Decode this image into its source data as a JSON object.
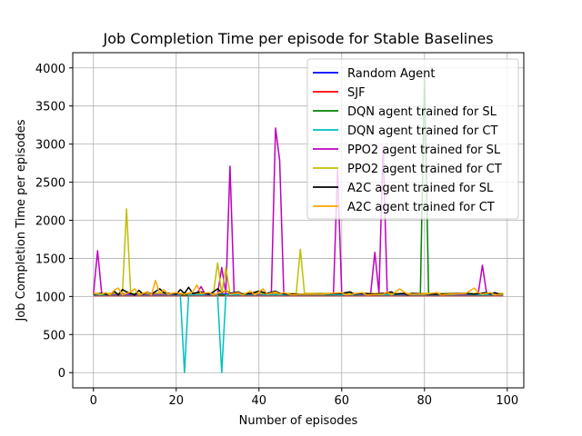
{
  "chart_data": {
    "type": "line",
    "title": "Job Completion Time per episode for Stable Baselines",
    "xlabel": "Number of episodes",
    "ylabel": "Job Completion Time per episodes",
    "xlim": [
      -5,
      104
    ],
    "ylim": [
      -200,
      4200
    ],
    "xticks": [
      0,
      20,
      40,
      60,
      80,
      100
    ],
    "yticks": [
      0,
      500,
      1000,
      1500,
      2000,
      2500,
      3000,
      3500,
      4000
    ],
    "grid": true,
    "legend_position": "top-right",
    "series": [
      {
        "name": "Random Agent",
        "color": "#0000ff",
        "points": [
          [
            0,
            1030
          ],
          [
            5,
            1040
          ],
          [
            10,
            1030
          ],
          [
            15,
            1040
          ],
          [
            20,
            1030
          ],
          [
            25,
            1040
          ],
          [
            30,
            1030
          ],
          [
            35,
            1030
          ],
          [
            40,
            1040
          ],
          [
            45,
            1030
          ],
          [
            50,
            1030
          ],
          [
            55,
            1040
          ],
          [
            60,
            1030
          ],
          [
            65,
            1030
          ],
          [
            70,
            1040
          ],
          [
            75,
            1030
          ],
          [
            80,
            1030
          ],
          [
            85,
            1040
          ],
          [
            90,
            1030
          ],
          [
            95,
            1030
          ],
          [
            99,
            1030
          ]
        ]
      },
      {
        "name": "SJF",
        "color": "#ff0000",
        "points": [
          [
            0,
            1010
          ],
          [
            10,
            1010
          ],
          [
            20,
            1010
          ],
          [
            30,
            1010
          ],
          [
            40,
            1010
          ],
          [
            50,
            1010
          ],
          [
            60,
            1010
          ],
          [
            70,
            1010
          ],
          [
            80,
            1010
          ],
          [
            90,
            1010
          ],
          [
            99,
            1010
          ]
        ]
      },
      {
        "name": "DQN agent trained for SL",
        "color": "#008000",
        "points": [
          [
            0,
            1020
          ],
          [
            10,
            1020
          ],
          [
            20,
            1020
          ],
          [
            30,
            1020
          ],
          [
            40,
            1020
          ],
          [
            50,
            1020
          ],
          [
            60,
            1020
          ],
          [
            70,
            1020
          ],
          [
            78,
            1020
          ],
          [
            79,
            1020
          ],
          [
            80,
            3900
          ],
          [
            81,
            1020
          ],
          [
            85,
            1020
          ],
          [
            90,
            1020
          ],
          [
            99,
            1020
          ]
        ]
      },
      {
        "name": "DQN agent trained for CT",
        "color": "#00bfbf",
        "points": [
          [
            0,
            1020
          ],
          [
            10,
            1020
          ],
          [
            20,
            1020
          ],
          [
            21,
            1020
          ],
          [
            22,
            0
          ],
          [
            23,
            1020
          ],
          [
            30,
            1020
          ],
          [
            31,
            0
          ],
          [
            32,
            1020
          ],
          [
            40,
            1020
          ],
          [
            50,
            1020
          ],
          [
            60,
            1020
          ],
          [
            70,
            1020
          ],
          [
            80,
            1020
          ],
          [
            90,
            1020
          ],
          [
            99,
            1020
          ]
        ]
      },
      {
        "name": "PPO2 agent trained for SL",
        "color": "#bf00bf",
        "points": [
          [
            0,
            1030
          ],
          [
            1,
            1600
          ],
          [
            2,
            1040
          ],
          [
            5,
            1030
          ],
          [
            10,
            1030
          ],
          [
            15,
            1030
          ],
          [
            20,
            1030
          ],
          [
            25,
            1040
          ],
          [
            26,
            1130
          ],
          [
            27,
            1030
          ],
          [
            30,
            1030
          ],
          [
            31,
            1380
          ],
          [
            32,
            1040
          ],
          [
            33,
            2710
          ],
          [
            34,
            1040
          ],
          [
            40,
            1030
          ],
          [
            43,
            1050
          ],
          [
            44,
            3210
          ],
          [
            45,
            2790
          ],
          [
            46,
            1040
          ],
          [
            50,
            1030
          ],
          [
            55,
            1030
          ],
          [
            58,
            1040
          ],
          [
            59,
            2660
          ],
          [
            60,
            1040
          ],
          [
            65,
            1030
          ],
          [
            67,
            1040
          ],
          [
            68,
            1580
          ],
          [
            69,
            1040
          ],
          [
            70,
            2950
          ],
          [
            71,
            1040
          ],
          [
            75,
            1030
          ],
          [
            80,
            1030
          ],
          [
            85,
            1030
          ],
          [
            90,
            1030
          ],
          [
            93,
            1040
          ],
          [
            94,
            1410
          ],
          [
            95,
            1040
          ],
          [
            99,
            1030
          ]
        ]
      },
      {
        "name": "PPO2 agent trained for CT",
        "color": "#bfbf00",
        "points": [
          [
            0,
            1040
          ],
          [
            5,
            1040
          ],
          [
            7,
            1040
          ],
          [
            8,
            2150
          ],
          [
            9,
            1040
          ],
          [
            15,
            1040
          ],
          [
            20,
            1040
          ],
          [
            25,
            1040
          ],
          [
            29,
            1040
          ],
          [
            30,
            1440
          ],
          [
            31,
            1040
          ],
          [
            32,
            1380
          ],
          [
            33,
            1040
          ],
          [
            40,
            1040
          ],
          [
            45,
            1040
          ],
          [
            49,
            1040
          ],
          [
            50,
            1620
          ],
          [
            51,
            1040
          ],
          [
            55,
            1040
          ],
          [
            60,
            1040
          ],
          [
            70,
            1040
          ],
          [
            80,
            1040
          ],
          [
            90,
            1040
          ],
          [
            99,
            1040
          ]
        ]
      },
      {
        "name": "A2C agent trained for SL",
        "color": "#000000",
        "points": [
          [
            0,
            1030
          ],
          [
            2,
            1040
          ],
          [
            4,
            1020
          ],
          [
            5,
            1070
          ],
          [
            6,
            1020
          ],
          [
            7,
            1090
          ],
          [
            8,
            1060
          ],
          [
            9,
            1040
          ],
          [
            10,
            1020
          ],
          [
            11,
            1080
          ],
          [
            12,
            1030
          ],
          [
            13,
            1060
          ],
          [
            14,
            1030
          ],
          [
            16,
            1100
          ],
          [
            17,
            1050
          ],
          [
            18,
            1040
          ],
          [
            20,
            1030
          ],
          [
            21,
            1090
          ],
          [
            22,
            1040
          ],
          [
            23,
            1120
          ],
          [
            24,
            1040
          ],
          [
            26,
            1060
          ],
          [
            27,
            1040
          ],
          [
            28,
            1030
          ],
          [
            29,
            1060
          ],
          [
            30,
            1100
          ],
          [
            31,
            1050
          ],
          [
            32,
            1080
          ],
          [
            33,
            1040
          ],
          [
            35,
            1060
          ],
          [
            36,
            1030
          ],
          [
            38,
            1040
          ],
          [
            40,
            1070
          ],
          [
            42,
            1040
          ],
          [
            44,
            1070
          ],
          [
            45,
            1040
          ],
          [
            47,
            1030
          ],
          [
            50,
            1030
          ],
          [
            55,
            1030
          ],
          [
            60,
            1040
          ],
          [
            62,
            1060
          ],
          [
            63,
            1030
          ],
          [
            65,
            1040
          ],
          [
            68,
            1030
          ],
          [
            70,
            1040
          ],
          [
            72,
            1060
          ],
          [
            73,
            1030
          ],
          [
            75,
            1040
          ],
          [
            76,
            1020
          ],
          [
            77,
            1040
          ],
          [
            80,
            1030
          ],
          [
            85,
            1030
          ],
          [
            88,
            1040
          ],
          [
            90,
            1040
          ],
          [
            92,
            1030
          ],
          [
            95,
            1050
          ],
          [
            96,
            1030
          ],
          [
            97,
            1050
          ],
          [
            98,
            1030
          ],
          [
            99,
            1030
          ]
        ]
      },
      {
        "name": "A2C agent trained for CT",
        "color": "#ffa500",
        "points": [
          [
            0,
            1040
          ],
          [
            2,
            1030
          ],
          [
            3,
            1050
          ],
          [
            4,
            1020
          ],
          [
            5,
            1080
          ],
          [
            6,
            1110
          ],
          [
            7,
            1020
          ],
          [
            9,
            1060
          ],
          [
            10,
            1100
          ],
          [
            11,
            1020
          ],
          [
            13,
            1060
          ],
          [
            14,
            1020
          ],
          [
            15,
            1210
          ],
          [
            16,
            1040
          ],
          [
            17,
            1090
          ],
          [
            18,
            1030
          ],
          [
            20,
            1050
          ],
          [
            22,
            1030
          ],
          [
            24,
            1060
          ],
          [
            25,
            1150
          ],
          [
            26,
            1040
          ],
          [
            28,
            1050
          ],
          [
            29,
            1020
          ],
          [
            30,
            1040
          ],
          [
            32,
            1080
          ],
          [
            33,
            1030
          ],
          [
            35,
            1050
          ],
          [
            36,
            1020
          ],
          [
            38,
            1070
          ],
          [
            39,
            1020
          ],
          [
            40,
            1060
          ],
          [
            41,
            1100
          ],
          [
            42,
            1030
          ],
          [
            44,
            1060
          ],
          [
            45,
            1030
          ],
          [
            46,
            1050
          ],
          [
            48,
            1020
          ],
          [
            50,
            1030
          ],
          [
            55,
            1030
          ],
          [
            60,
            1050
          ],
          [
            61,
            1020
          ],
          [
            65,
            1050
          ],
          [
            66,
            1020
          ],
          [
            70,
            1030
          ],
          [
            71,
            1060
          ],
          [
            72,
            1020
          ],
          [
            74,
            1100
          ],
          [
            75,
            1060
          ],
          [
            76,
            1030
          ],
          [
            80,
            1030
          ],
          [
            83,
            1050
          ],
          [
            84,
            1020
          ],
          [
            86,
            1030
          ],
          [
            90,
            1040
          ],
          [
            92,
            1110
          ],
          [
            93,
            1050
          ],
          [
            94,
            1030
          ],
          [
            96,
            1050
          ],
          [
            97,
            1020
          ],
          [
            99,
            1030
          ]
        ]
      }
    ]
  }
}
